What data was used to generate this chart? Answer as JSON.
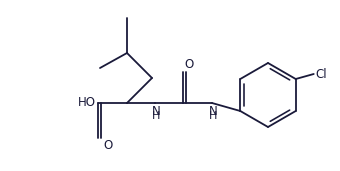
{
  "bg_color": "#ffffff",
  "line_color": "#1a1a3a",
  "bond_lw": 1.3,
  "font_size": 8.5,
  "font_color": "#1a1a3a",
  "figsize": [
    3.4,
    1.71
  ],
  "dpi": 100,
  "xlim": [
    0,
    340
  ],
  "ylim": [
    0,
    171
  ]
}
